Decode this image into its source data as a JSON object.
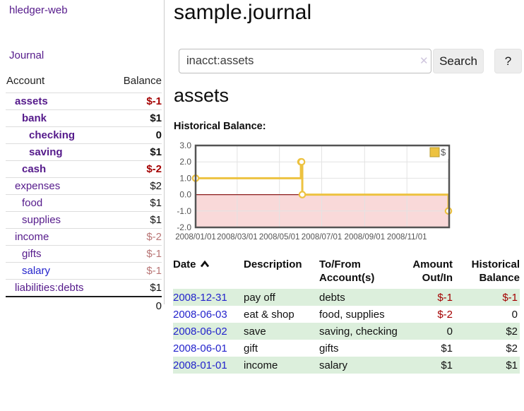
{
  "app": {
    "brand": "hledger-web"
  },
  "palette": {
    "link_purple": "#551a8b",
    "link_blue": "#2323cc",
    "negative_red": "#a40000",
    "negative_faded_red": "#b97676",
    "row_stripe_green": "#dcefdc",
    "chart_line_gold": "#edc240",
    "chart_border_gray": "#545454",
    "chart_negative_fill_pink": "#f9d9d9",
    "chart_zero_line_red": "#8b1a1a"
  },
  "sidebar": {
    "journal_label": "Journal",
    "accounts": {
      "headers": [
        "Account",
        "Balance"
      ],
      "rows": [
        {
          "name": "assets",
          "balance": "$-1",
          "level": 0,
          "bold": true,
          "balance_class": "neg-strong",
          "link_class": "purple"
        },
        {
          "name": "bank",
          "balance": "$1",
          "level": 1,
          "bold": true,
          "balance_class": "plain",
          "link_class": "purple"
        },
        {
          "name": "checking",
          "balance": "0",
          "level": 2,
          "bold": true,
          "balance_class": "plain",
          "link_class": "purple"
        },
        {
          "name": "saving",
          "balance": "$1",
          "level": 2,
          "bold": true,
          "balance_class": "plain",
          "link_class": "purple"
        },
        {
          "name": "cash",
          "balance": "$-2",
          "level": 1,
          "bold": true,
          "balance_class": "neg-strong",
          "link_class": "purple"
        },
        {
          "name": "expenses",
          "balance": "$2",
          "level": 0,
          "bold": false,
          "balance_class": "plain",
          "link_class": "purple"
        },
        {
          "name": "food",
          "balance": "$1",
          "level": 1,
          "bold": false,
          "balance_class": "plain",
          "link_class": "purple"
        },
        {
          "name": "supplies",
          "balance": "$1",
          "level": 1,
          "bold": false,
          "balance_class": "plain",
          "link_class": "purple"
        },
        {
          "name": "income",
          "balance": "$-2",
          "level": 0,
          "bold": false,
          "balance_class": "neg-faded",
          "link_class": "purple"
        },
        {
          "name": "gifts",
          "balance": "$-1",
          "level": 1,
          "bold": false,
          "balance_class": "neg-faded",
          "link_class": "purple"
        },
        {
          "name": "salary",
          "balance": "$-1",
          "level": 1,
          "bold": false,
          "balance_class": "neg-faded",
          "link_class": "blue"
        },
        {
          "name": "liabilities:debts",
          "balance": "$1",
          "level": 0,
          "bold": false,
          "balance_class": "plain",
          "link_class": "purple"
        }
      ],
      "total": "0"
    }
  },
  "main": {
    "title": "sample.journal",
    "search": {
      "value": "inacct:assets",
      "clear_icon": "✕",
      "search_button": "Search",
      "help_button": "?"
    },
    "account_heading": "assets",
    "section_label": "Historical Balance:",
    "register": {
      "headers": [
        {
          "line1": "Date",
          "line2": "",
          "align": "left",
          "sortable": true
        },
        {
          "line1": "Description",
          "line2": "",
          "align": "left"
        },
        {
          "line1": "To/From",
          "line2": "Account(s)",
          "align": "left"
        },
        {
          "line1": "Amount",
          "line2": "Out/In",
          "align": "right"
        },
        {
          "line1": "Historical",
          "line2": "Balance",
          "align": "right"
        }
      ],
      "rows": [
        {
          "date": "2008-12-31",
          "description": "pay off",
          "accounts": "debts",
          "amount": "$-1",
          "amount_class": "neg",
          "balance": "$-1",
          "balance_class": "neg"
        },
        {
          "date": "2008-06-03",
          "description": "eat & shop",
          "accounts": "food, supplies",
          "amount": "$-2",
          "amount_class": "neg",
          "balance": "0",
          "balance_class": "plain"
        },
        {
          "date": "2008-06-02",
          "description": "save",
          "accounts": "saving, checking",
          "amount": "0",
          "amount_class": "plain",
          "balance": "$2",
          "balance_class": "plain"
        },
        {
          "date": "2008-06-01",
          "description": "gift",
          "accounts": "gifts",
          "amount": "$1",
          "amount_class": "plain",
          "balance": "$2",
          "balance_class": "plain"
        },
        {
          "date": "2008-01-01",
          "description": "income",
          "accounts": "salary",
          "amount": "$1",
          "amount_class": "plain",
          "balance": "$1",
          "balance_class": "plain"
        }
      ]
    }
  },
  "chart_data": {
    "type": "line",
    "step": true,
    "title": "Historical Balance:",
    "series": [
      {
        "name": "$",
        "color": "#edc240",
        "points": [
          {
            "date": "2008-01-01",
            "day": 0,
            "value": 1
          },
          {
            "date": "2008-06-01",
            "day": 152,
            "value": 2
          },
          {
            "date": "2008-06-02",
            "day": 153,
            "value": 2
          },
          {
            "date": "2008-06-03",
            "day": 154,
            "value": 0
          },
          {
            "date": "2008-12-31",
            "day": 365,
            "value": -1
          }
        ]
      }
    ],
    "xlim": [
      0,
      366
    ],
    "ylim": [
      -2,
      3
    ],
    "yticks": [
      {
        "v": 3,
        "label": "3.0"
      },
      {
        "v": 2,
        "label": "2.0"
      },
      {
        "v": 1,
        "label": "1.0"
      },
      {
        "v": 0,
        "label": "0.0"
      },
      {
        "v": -1,
        "label": "-1.0"
      },
      {
        "v": -2,
        "label": "-2.0"
      }
    ],
    "xticks": [
      {
        "day": 0,
        "label": "2008/01/01"
      },
      {
        "day": 60,
        "label": "2008/03/01"
      },
      {
        "day": 121,
        "label": "2008/05/01"
      },
      {
        "day": 182,
        "label": "2008/07/01"
      },
      {
        "day": 244,
        "label": "2008/09/01"
      },
      {
        "day": 305,
        "label": "2008/11/01"
      }
    ],
    "legend": {
      "label": "$",
      "position": "top-right"
    },
    "grid": true,
    "negative_region_shaded": true
  }
}
